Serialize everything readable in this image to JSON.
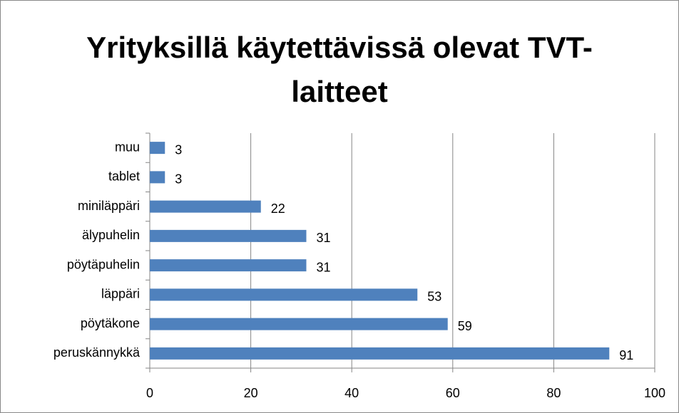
{
  "chart_data": {
    "type": "bar",
    "orientation": "horizontal",
    "title": "Yrityksillä käytettävissä olevat TVT-laitteet",
    "categories": [
      "peruskännykkä",
      "pöytäkone",
      "läppäri",
      "pöytäpuhelin",
      "älypuhelin",
      "miniläppäri",
      "tablet",
      "muu"
    ],
    "values": [
      91,
      59,
      53,
      31,
      31,
      22,
      3,
      3
    ],
    "color": "#4f81bd",
    "xlim": [
      0,
      100
    ],
    "xticks": [
      0,
      20,
      40,
      60,
      80,
      100
    ],
    "grid": true
  }
}
